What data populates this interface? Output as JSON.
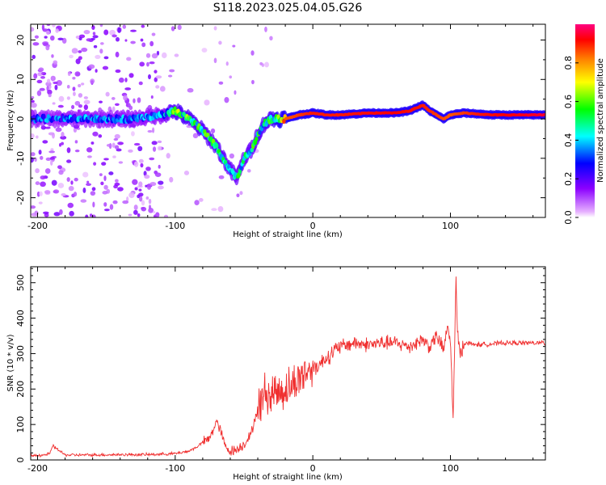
{
  "title": "S118.2023.025.04.05.G26",
  "chart_data": [
    {
      "type": "heatmap",
      "xlabel": "Height of straight line (km)",
      "ylabel": "Frequency (Hz)",
      "xlim": [
        -205,
        169
      ],
      "ylim": [
        -25,
        24
      ],
      "x_ticks": [
        -200,
        -100,
        0,
        100
      ],
      "y_ticks": [
        -20,
        -10,
        0,
        10,
        20
      ],
      "colorbar": {
        "label": "Normalized spectral amplitude",
        "range": [
          0,
          1
        ],
        "ticks": [
          0.0,
          0.2,
          0.4,
          0.6,
          0.8
        ],
        "colormap": [
          "#ffffff",
          "#8b00ff",
          "#0000ff",
          "#00ffff",
          "#00ff00",
          "#ffff00",
          "#ff8000",
          "#ff0000",
          "#ff0080"
        ]
      },
      "ridge": {
        "x": [
          -205,
          -190,
          -160,
          -130,
          -110,
          -100,
          -90,
          -80,
          -70,
          -60,
          -55,
          -50,
          -45,
          -40,
          -35,
          -30,
          -20,
          -10,
          0,
          10,
          20,
          40,
          60,
          70,
          80,
          85,
          90,
          95,
          100,
          110,
          130,
          169
        ],
        "freq": [
          0,
          0,
          0,
          0,
          1,
          2,
          0,
          -3,
          -7,
          -13,
          -15,
          -10,
          -8,
          -4,
          -1,
          0,
          0,
          1,
          1.5,
          1,
          1,
          1.5,
          1.5,
          2,
          3.5,
          2,
          1,
          0,
          1,
          1.5,
          1,
          1
        ]
      },
      "ridge_amplitude": {
        "x": [
          -205,
          -110,
          -100,
          -70,
          -50,
          -30,
          -20,
          0,
          20,
          60,
          80,
          100,
          120,
          169
        ],
        "amp": [
          0.35,
          0.4,
          0.6,
          0.55,
          0.5,
          0.6,
          0.85,
          0.9,
          0.9,
          0.92,
          0.9,
          0.85,
          0.9,
          0.95
        ]
      }
    },
    {
      "type": "line",
      "xlabel": "Height of straight line (km)",
      "ylabel": "SNR (10 * v/v)",
      "xlim": [
        -205,
        169
      ],
      "ylim": [
        0,
        545
      ],
      "x_ticks": [
        -200,
        -100,
        0,
        100
      ],
      "y_ticks": [
        0,
        100,
        200,
        300,
        400,
        500
      ],
      "color": "#f03030",
      "series": [
        {
          "name": "",
          "x": [
            -205,
            -195,
            -191,
            -189,
            -180,
            -160,
            -140,
            -120,
            -100,
            -90,
            -85,
            -80,
            -75,
            -72,
            -70,
            -66,
            -64,
            -60,
            -55,
            -50,
            -45,
            -42,
            -38,
            -35,
            -30,
            -28,
            -25,
            -20,
            -15,
            -10,
            -5,
            0,
            5,
            10,
            20,
            30,
            40,
            50,
            60,
            70,
            80,
            85,
            90,
            95,
            98,
            100,
            102,
            103,
            104,
            105,
            107,
            110,
            120,
            140,
            169
          ],
          "y": [
            12,
            14,
            18,
            40,
            14,
            14,
            15,
            15,
            18,
            25,
            35,
            50,
            60,
            90,
            110,
            70,
            40,
            25,
            30,
            45,
            70,
            120,
            160,
            190,
            180,
            200,
            190,
            200,
            210,
            230,
            250,
            260,
            270,
            290,
            320,
            330,
            325,
            330,
            330,
            320,
            340,
            320,
            350,
            310,
            380,
            330,
            120,
            300,
            520,
            360,
            300,
            330,
            325,
            330,
            330
          ]
        }
      ]
    }
  ]
}
